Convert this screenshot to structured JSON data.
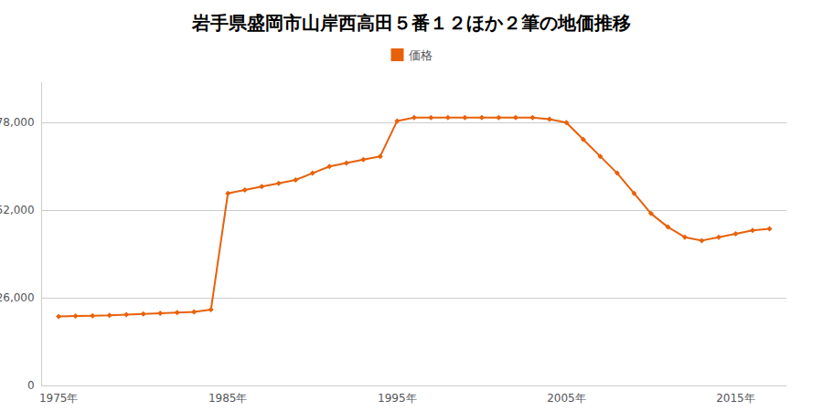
{
  "chart_data": {
    "type": "line",
    "title": "岩手県盛岡市山岸西高田５番１２ほか２筆の地価推移",
    "x": [
      1975,
      1976,
      1977,
      1978,
      1979,
      1980,
      1981,
      1982,
      1983,
      1984,
      1985,
      1986,
      1987,
      1988,
      1989,
      1990,
      1991,
      1992,
      1993,
      1994,
      1995,
      1996,
      1997,
      1998,
      1999,
      2000,
      2001,
      2002,
      2003,
      2004,
      2005,
      2006,
      2007,
      2008,
      2009,
      2010,
      2011,
      2012,
      2013,
      2014,
      2015,
      2016,
      2017
    ],
    "series": [
      {
        "name": "価格",
        "color": "#e8610a",
        "marker": "diamond",
        "values": [
          20500,
          20600,
          20700,
          20800,
          21000,
          21200,
          21400,
          21600,
          21800,
          22500,
          57000,
          58000,
          59000,
          60000,
          61000,
          63000,
          65000,
          66000,
          67000,
          68000,
          78500,
          79500,
          79500,
          79500,
          79500,
          79500,
          79500,
          79500,
          79500,
          79000,
          78000,
          73000,
          68000,
          63000,
          57000,
          51000,
          47000,
          44000,
          43000,
          44000,
          45000,
          46000,
          46500
        ]
      }
    ],
    "xlim": [
      1974,
      2018
    ],
    "xticks": [
      {
        "value": 1975,
        "label": "1975年"
      },
      {
        "value": 1985,
        "label": "1985年"
      },
      {
        "value": 1995,
        "label": "1995年"
      },
      {
        "value": 2005,
        "label": "2005年"
      },
      {
        "value": 2015,
        "label": "2015年"
      }
    ],
    "ylim": [
      0,
      90000
    ],
    "yticks": [
      0,
      {
        "value": 26000,
        "label": "26,000"
      },
      {
        "value": 52000,
        "label": "52,000"
      },
      {
        "value": 78000,
        "label": "78,000"
      }
    ],
    "grid": true,
    "legend": "top"
  }
}
